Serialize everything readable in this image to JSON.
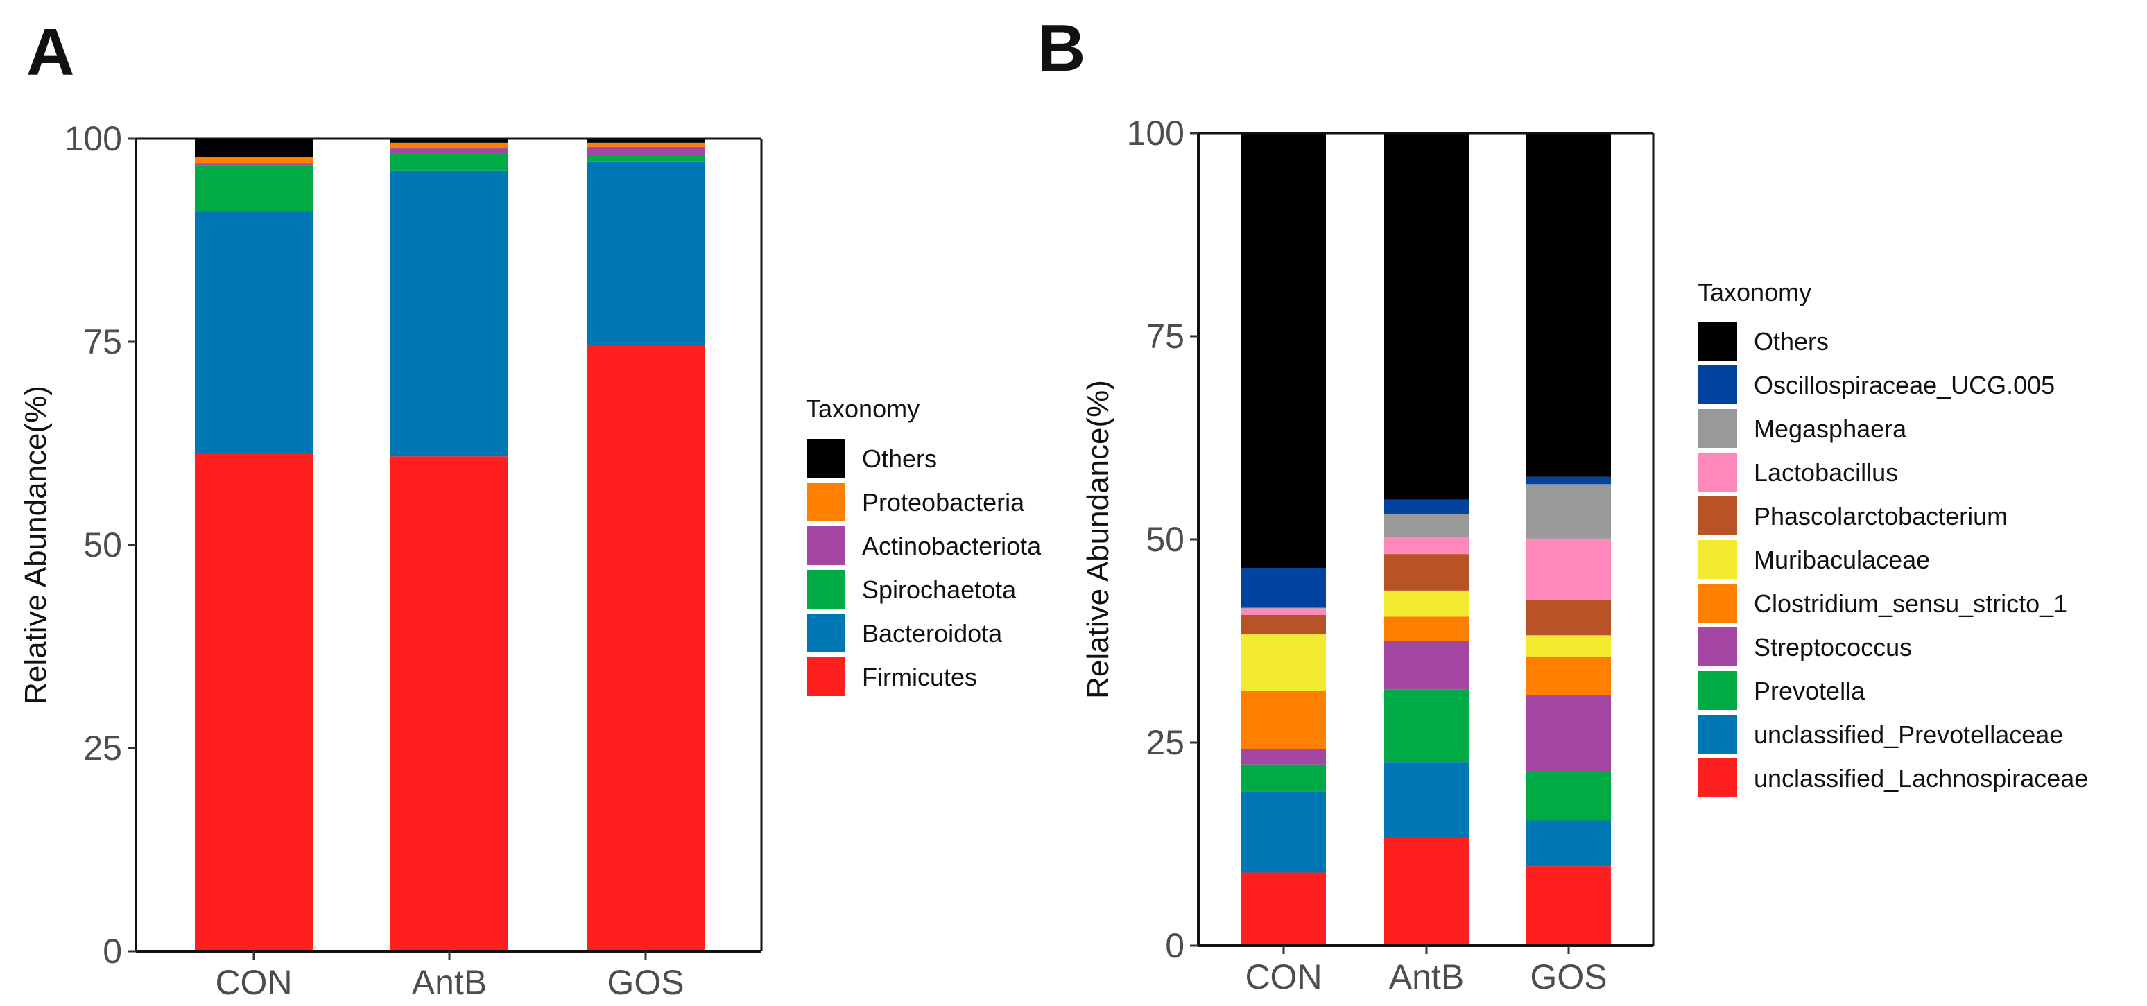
{
  "chart_data": [
    {
      "panel": "A",
      "type": "bar",
      "stacked": true,
      "categories": [
        "CON",
        "AntB",
        "GOS"
      ],
      "ylabel": "Relative Abundance(%)",
      "xlabel": "",
      "ylim": [
        0,
        100
      ],
      "yticks": [
        "0",
        "25",
        "50",
        "75",
        "100"
      ],
      "legend_title": "Taxonomy",
      "legend_position": "right",
      "series": [
        {
          "name": "Firmicutes",
          "color": "#FF1F1F",
          "values": [
            61.3,
            60.9,
            74.6
          ]
        },
        {
          "name": "Bacteroidota",
          "color": "#0077B5",
          "values": [
            29.7,
            35.2,
            22.6
          ]
        },
        {
          "name": "Spirochaetota",
          "color": "#00AA44",
          "values": [
            5.7,
            2.1,
            0.8
          ]
        },
        {
          "name": "Actinobacteriota",
          "color": "#A347A3",
          "values": [
            0.3,
            0.6,
            1.0
          ]
        },
        {
          "name": "Proteobacteria",
          "color": "#FF7F00",
          "values": [
            0.7,
            0.7,
            0.5
          ]
        },
        {
          "name": "Others",
          "color": "#000000",
          "values": [
            2.3,
            0.5,
            0.5
          ]
        }
      ]
    },
    {
      "panel": "B",
      "type": "bar",
      "stacked": true,
      "categories": [
        "CON",
        "AntB",
        "GOS"
      ],
      "ylabel": "Relative Abundance(%)",
      "xlabel": "",
      "ylim": [
        0,
        100
      ],
      "yticks": [
        "0",
        "25",
        "50",
        "75",
        "100"
      ],
      "legend_title": "Taxonomy",
      "legend_position": "right",
      "series": [
        {
          "name": "unclassified_Lachnospiraceae",
          "color": "#FF1F1F",
          "values": [
            9.0,
            13.3,
            9.8
          ]
        },
        {
          "name": "unclassified_Prevotellaceae",
          "color": "#0077B5",
          "values": [
            10.0,
            9.3,
            5.6
          ]
        },
        {
          "name": "Prevotella",
          "color": "#00AA44",
          "values": [
            3.3,
            8.9,
            6.1
          ]
        },
        {
          "name": "Streptococcus",
          "color": "#A347A3",
          "values": [
            1.9,
            6.0,
            9.3
          ]
        },
        {
          "name": "Clostridium_sensu_stricto_1",
          "color": "#FF7F00",
          "values": [
            7.2,
            3.0,
            4.7
          ]
        },
        {
          "name": "Muribaculaceae",
          "color": "#F2EB30",
          "values": [
            6.9,
            3.2,
            2.7
          ]
        },
        {
          "name": "Phascolarctobacterium",
          "color": "#B85328",
          "values": [
            2.4,
            4.5,
            4.3
          ]
        },
        {
          "name": "Lactobacillus",
          "color": "#FF88BB",
          "values": [
            0.8,
            2.1,
            7.6
          ]
        },
        {
          "name": "Megasphaera",
          "color": "#999999",
          "values": [
            0.1,
            2.8,
            6.7
          ]
        },
        {
          "name": "Oscillospiraceae_UCG.005",
          "color": "#0044A0",
          "values": [
            4.9,
            1.8,
            0.9
          ]
        },
        {
          "name": "Others",
          "color": "#000000",
          "values": [
            53.5,
            45.1,
            42.3
          ]
        }
      ]
    }
  ]
}
